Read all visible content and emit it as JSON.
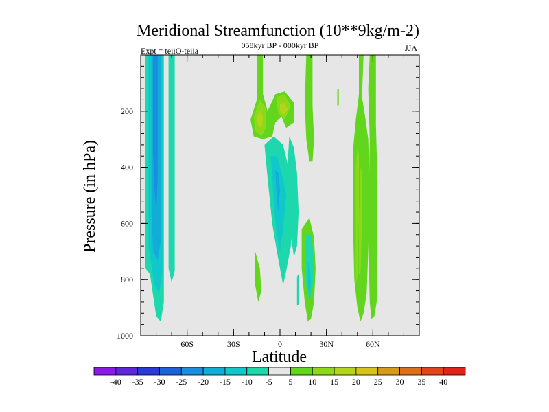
{
  "chart_data": {
    "type": "heatmap",
    "title": "Meridional Streamfunction (10**9kg/m-2)",
    "subtitle_left": "Expt = teiiO-teiia",
    "subtitle_center": "058kyr BP - 000kyr BP",
    "subtitle_right": "JJA",
    "xlabel": "Latitude",
    "ylabel": "Pressure (in hPa)",
    "xlim": [
      -90,
      90
    ],
    "ylim": [
      1000,
      0
    ],
    "x_ticks": [
      {
        "value": -60,
        "label": "60S"
      },
      {
        "value": -30,
        "label": "30S"
      },
      {
        "value": 0,
        "label": "0"
      },
      {
        "value": 30,
        "label": "30N"
      },
      {
        "value": 60,
        "label": "60N"
      }
    ],
    "y_ticks": [
      {
        "value": 200,
        "label": "200"
      },
      {
        "value": 400,
        "label": "400"
      },
      {
        "value": 600,
        "label": "600"
      },
      {
        "value": 800,
        "label": "800"
      },
      {
        "value": 1000,
        "label": "1000"
      }
    ],
    "background_color": "#e6e6e6",
    "colorbar": {
      "labels": [
        "-40",
        "-35",
        "-30",
        "-25",
        "-20",
        "-15",
        "-10",
        "-5",
        "5",
        "10",
        "15",
        "20",
        "25",
        "30",
        "35",
        "40"
      ],
      "colors": [
        "#8b1ae6",
        "#5a28d8",
        "#2a3ad6",
        "#1c63d8",
        "#1a8ede",
        "#11acd8",
        "#10c8cc",
        "#1cd8ac",
        "#e6e6e6",
        "#62d61c",
        "#8ed81a",
        "#b4d61a",
        "#d6c41a",
        "#d89a1a",
        "#dc701a",
        "#e0461a",
        "#e0241a"
      ]
    },
    "regions": [
      {
        "level": -5,
        "color": "#1cd8ac",
        "points": [
          [
            -87,
            0
          ],
          [
            -75,
            0
          ],
          [
            -75,
            880
          ],
          [
            -77,
            950
          ],
          [
            -80,
            930
          ],
          [
            -84,
            780
          ],
          [
            -87,
            760
          ]
        ]
      },
      {
        "level": -10,
        "color": "#10c8cc",
        "points": [
          [
            -85,
            0
          ],
          [
            -76,
            0
          ],
          [
            -76,
            770
          ],
          [
            -78,
            850
          ],
          [
            -81,
            820
          ],
          [
            -85,
            680
          ]
        ]
      },
      {
        "level": -15,
        "color": "#11acd8",
        "points": [
          [
            -83,
            0
          ],
          [
            -77,
            0
          ],
          [
            -77,
            660
          ],
          [
            -79,
            730
          ],
          [
            -82,
            700
          ],
          [
            -83,
            560
          ]
        ]
      },
      {
        "level": -20,
        "color": "#1a8ede",
        "points": [
          [
            -82,
            0
          ],
          [
            -79,
            0
          ],
          [
            -79,
            430
          ],
          [
            -80,
            560
          ],
          [
            -81,
            480
          ],
          [
            -82,
            340
          ]
        ]
      },
      {
        "level": -5,
        "color": "#1cd8ac",
        "points": [
          [
            -72,
            0
          ],
          [
            -68,
            0
          ],
          [
            -68,
            770
          ],
          [
            -70,
            810
          ],
          [
            -72,
            760
          ]
        ]
      },
      {
        "level": 5,
        "color": "#62d61c",
        "points": [
          [
            -15,
            0
          ],
          [
            -11,
            0
          ],
          [
            -11,
            140
          ],
          [
            -8,
            200
          ],
          [
            -3,
            140
          ],
          [
            3,
            130
          ],
          [
            9,
            170
          ],
          [
            9,
            240
          ],
          [
            4,
            260
          ],
          [
            1,
            220
          ],
          [
            -3,
            240
          ],
          [
            -5,
            290
          ],
          [
            -11,
            300
          ],
          [
            -17,
            290
          ],
          [
            -19,
            230
          ],
          [
            -15,
            160
          ]
        ]
      },
      {
        "level": 10,
        "color": "#8ed81a",
        "points": [
          [
            -13,
            160
          ],
          [
            -9,
            190
          ],
          [
            -9,
            260
          ],
          [
            -12,
            290
          ],
          [
            -16,
            270
          ],
          [
            -17,
            220
          ]
        ]
      },
      {
        "level": 10,
        "color": "#8ed81a",
        "points": [
          [
            -2,
            150
          ],
          [
            3,
            140
          ],
          [
            7,
            180
          ],
          [
            3,
            230
          ],
          [
            -1,
            210
          ],
          [
            -2,
            180
          ]
        ]
      },
      {
        "level": 15,
        "color": "#b4d61a",
        "points": [
          [
            -13,
            200
          ],
          [
            -11,
            220
          ],
          [
            -12,
            260
          ],
          [
            -14,
            250
          ],
          [
            -15,
            220
          ]
        ]
      },
      {
        "level": 15,
        "color": "#b4d61a",
        "points": [
          [
            0,
            175
          ],
          [
            3,
            170
          ],
          [
            5,
            195
          ],
          [
            2,
            215
          ],
          [
            0,
            195
          ]
        ]
      },
      {
        "level": -5,
        "color": "#1cd8ac",
        "points": [
          [
            -10,
            320
          ],
          [
            -4,
            290
          ],
          [
            2,
            320
          ],
          [
            5,
            390
          ],
          [
            9,
            500
          ],
          [
            9,
            560
          ],
          [
            7,
            680
          ],
          [
            4,
            770
          ],
          [
            2,
            820
          ],
          [
            0,
            760
          ],
          [
            -2,
            700
          ],
          [
            -5,
            600
          ],
          [
            -8,
            440
          ]
        ]
      },
      {
        "level": -10,
        "color": "#10c8cc",
        "points": [
          [
            -6,
            360
          ],
          [
            -2,
            360
          ],
          [
            1,
            420
          ],
          [
            4,
            500
          ],
          [
            2,
            620
          ],
          [
            0,
            700
          ],
          [
            -2,
            640
          ],
          [
            -4,
            540
          ],
          [
            -5,
            420
          ]
        ]
      },
      {
        "level": -15,
        "color": "#11acd8",
        "points": [
          [
            -3,
            410
          ],
          [
            -1,
            420
          ],
          [
            0,
            480
          ],
          [
            -1,
            560
          ],
          [
            -2,
            520
          ]
        ]
      },
      {
        "level": -5,
        "color": "#1cd8ac",
        "points": [
          [
            6,
            290
          ],
          [
            9,
            330
          ],
          [
            11,
            420
          ],
          [
            12,
            560
          ],
          [
            11,
            680
          ],
          [
            9,
            720
          ],
          [
            7,
            640
          ],
          [
            6,
            500
          ],
          [
            5,
            380
          ]
        ]
      },
      {
        "level": 5,
        "color": "#62d61c",
        "points": [
          [
            -16,
            700
          ],
          [
            -13,
            760
          ],
          [
            -12,
            840
          ],
          [
            -14,
            880
          ],
          [
            -16,
            820
          ]
        ]
      },
      {
        "level": 5,
        "color": "#62d61c",
        "points": [
          [
            17,
            0
          ],
          [
            21,
            0
          ],
          [
            21,
            180
          ],
          [
            22,
            300
          ],
          [
            21,
            380
          ],
          [
            19,
            380
          ],
          [
            17,
            300
          ],
          [
            16,
            170
          ]
        ]
      },
      {
        "level": 5,
        "color": "#62d61c",
        "points": [
          [
            14,
            620
          ],
          [
            19,
            580
          ],
          [
            22,
            650
          ],
          [
            23,
            760
          ],
          [
            22,
            880
          ],
          [
            20,
            940
          ],
          [
            18,
            950
          ],
          [
            16,
            880
          ],
          [
            14,
            760
          ]
        ]
      },
      {
        "level": -5,
        "color": "#1cd8ac",
        "points": [
          [
            17,
            640
          ],
          [
            20,
            640
          ],
          [
            22,
            720
          ],
          [
            21,
            830
          ],
          [
            19,
            880
          ],
          [
            17,
            820
          ],
          [
            16,
            720
          ]
        ]
      },
      {
        "level": -10,
        "color": "#10c8cc",
        "points": [
          [
            18,
            740
          ],
          [
            19,
            740
          ],
          [
            20,
            810
          ],
          [
            19,
            860
          ],
          [
            18,
            820
          ]
        ]
      },
      {
        "level": -5,
        "color": "#1cd8ac",
        "points": [
          [
            11,
            790
          ],
          [
            12,
            780
          ],
          [
            12,
            890
          ],
          [
            11,
            890
          ]
        ]
      },
      {
        "level": 5,
        "color": "#62d61c",
        "points": [
          [
            37,
            120
          ],
          [
            38,
            120
          ],
          [
            38,
            180
          ],
          [
            37,
            180
          ]
        ]
      },
      {
        "level": 5,
        "color": "#62d61c",
        "points": [
          [
            51,
            0
          ],
          [
            54,
            0
          ],
          [
            53,
            150
          ],
          [
            55,
            220
          ],
          [
            57,
            300
          ],
          [
            58,
            500
          ],
          [
            57,
            700
          ],
          [
            56,
            850
          ],
          [
            54,
            920
          ],
          [
            52,
            950
          ],
          [
            50,
            900
          ],
          [
            48,
            800
          ],
          [
            47,
            560
          ],
          [
            47,
            350
          ],
          [
            49,
            230
          ],
          [
            51,
            140
          ]
        ]
      },
      {
        "level": 5,
        "color": "#62d61c",
        "points": [
          [
            58,
            0
          ],
          [
            62,
            0
          ],
          [
            62,
            250
          ],
          [
            63,
            450
          ],
          [
            63,
            650
          ],
          [
            63,
            860
          ],
          [
            61,
            930
          ],
          [
            59,
            940
          ],
          [
            58,
            880
          ],
          [
            57,
            640
          ],
          [
            58,
            300
          ],
          [
            57,
            120
          ]
        ]
      },
      {
        "level": 10,
        "color": "#8ed81a",
        "points": [
          [
            50,
            330
          ],
          [
            51,
            360
          ],
          [
            51,
            560
          ],
          [
            50,
            790
          ],
          [
            49,
            820
          ],
          [
            49,
            560
          ],
          [
            49,
            400
          ]
        ]
      },
      {
        "level": 10,
        "color": "#8ed81a",
        "points": [
          [
            52,
            400
          ],
          [
            53,
            420
          ],
          [
            53,
            600
          ],
          [
            52,
            780
          ],
          [
            51,
            780
          ],
          [
            51,
            600
          ]
        ]
      }
    ]
  }
}
